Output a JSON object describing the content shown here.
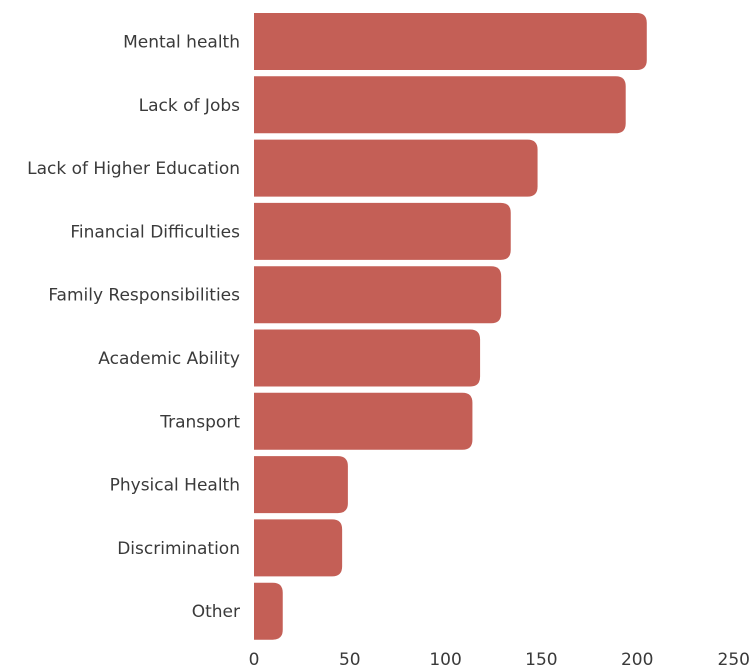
{
  "chart_data": {
    "type": "bar",
    "orientation": "horizontal",
    "categories": [
      "Mental health",
      "Lack of Jobs",
      "Lack of Higher Education",
      "Financial Difficulties",
      "Family Responsibilities",
      "Academic Ability",
      "Transport",
      "Physical Health",
      "Discrimination",
      "Other"
    ],
    "values": [
      205,
      194,
      148,
      134,
      129,
      118,
      114,
      49,
      46,
      15
    ],
    "xlim": [
      0,
      250
    ],
    "xticks": [
      0,
      50,
      100,
      150,
      200,
      250
    ],
    "title": "",
    "xlabel": "",
    "ylabel": "",
    "grid": false,
    "legend": "none",
    "colors": {
      "bar": "#c45f56",
      "text": "#3a3a3a"
    }
  }
}
